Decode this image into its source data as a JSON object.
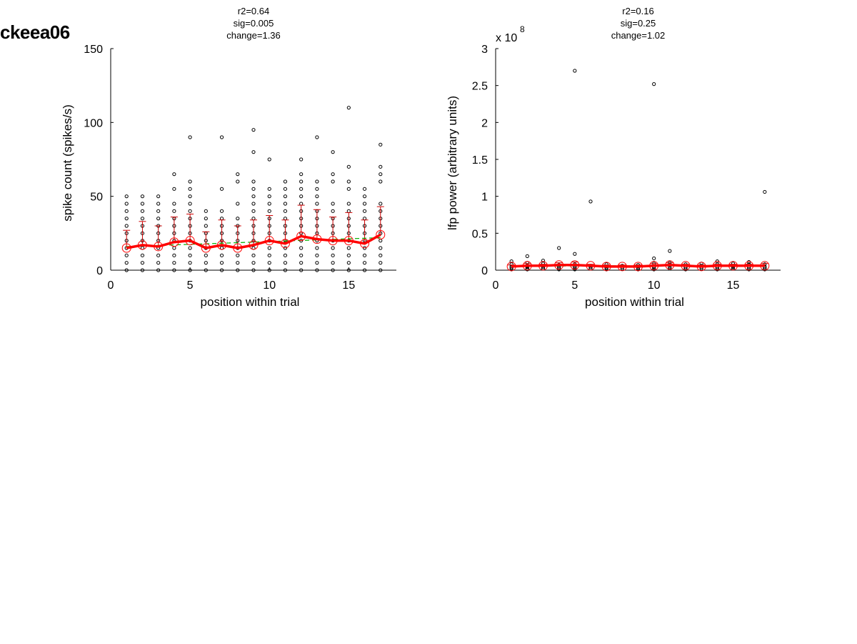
{
  "figure": {
    "unit_label": "ckeea06"
  },
  "chart_data": [
    {
      "type": "scatter",
      "title": [
        "r2=0.64",
        "sig=0.005",
        "change=1.36"
      ],
      "xlabel": "position within trial",
      "ylabel": "spike count (spikes/s)",
      "exponent_label": "",
      "xlim": [
        0,
        18
      ],
      "ylim": [
        0,
        150
      ],
      "xticks": [
        0,
        5,
        10,
        15
      ],
      "xtick_labels": [
        "0",
        "5",
        "10",
        "15"
      ],
      "yticks": [
        0,
        50,
        100,
        150
      ],
      "ytick_labels": [
        "0",
        "50",
        "100",
        "150"
      ],
      "grid": false,
      "legend": "none",
      "colors": {
        "raw": "#000000",
        "mean": "#ff0000",
        "error": "#cc0000",
        "fit": "#00b000"
      },
      "raw_points": [
        [
          0,
          5,
          10,
          15,
          20,
          25,
          30,
          35,
          40,
          45,
          50
        ],
        [
          0,
          5,
          10,
          15,
          20,
          25,
          30,
          35,
          40,
          45,
          50
        ],
        [
          0,
          5,
          10,
          15,
          20,
          25,
          30,
          35,
          40,
          45,
          50
        ],
        [
          0,
          5,
          10,
          15,
          20,
          25,
          30,
          35,
          40,
          45,
          55,
          65
        ],
        [
          0,
          5,
          10,
          15,
          20,
          25,
          30,
          35,
          40,
          45,
          50,
          55,
          60,
          90
        ],
        [
          0,
          5,
          10,
          15,
          20,
          25,
          30,
          35,
          40
        ],
        [
          0,
          5,
          10,
          15,
          20,
          25,
          30,
          35,
          40,
          55,
          90
        ],
        [
          0,
          5,
          10,
          15,
          20,
          25,
          30,
          35,
          45,
          60,
          65
        ],
        [
          0,
          5,
          10,
          15,
          20,
          25,
          30,
          35,
          40,
          45,
          50,
          55,
          60,
          80,
          95
        ],
        [
          0,
          5,
          10,
          15,
          20,
          25,
          30,
          35,
          40,
          45,
          50,
          55,
          75
        ],
        [
          0,
          5,
          10,
          15,
          20,
          25,
          30,
          35,
          40,
          45,
          50,
          55,
          60
        ],
        [
          0,
          5,
          10,
          15,
          20,
          25,
          30,
          35,
          40,
          45,
          50,
          55,
          60,
          65,
          75
        ],
        [
          0,
          5,
          10,
          15,
          20,
          25,
          30,
          35,
          40,
          45,
          50,
          55,
          60,
          90
        ],
        [
          0,
          5,
          10,
          15,
          20,
          25,
          30,
          35,
          40,
          45,
          60,
          65,
          80
        ],
        [
          0,
          5,
          10,
          15,
          20,
          25,
          30,
          35,
          40,
          45,
          55,
          60,
          70,
          110
        ],
        [
          0,
          5,
          10,
          15,
          20,
          25,
          30,
          35,
          40,
          45,
          50,
          55
        ],
        [
          0,
          5,
          10,
          15,
          20,
          25,
          30,
          35,
          40,
          45,
          60,
          65,
          70,
          85
        ]
      ],
      "series": [
        {
          "x": [
            1,
            2,
            3,
            4,
            5,
            6,
            7,
            8,
            9,
            10,
            11,
            12,
            13,
            14,
            15,
            16,
            17
          ],
          "values": [
            15,
            17,
            16,
            19,
            20,
            15,
            17,
            15,
            17,
            20,
            18,
            23,
            21,
            20,
            20,
            18,
            24
          ],
          "sd": [
            12,
            16,
            14,
            17,
            18,
            11,
            17,
            15,
            17,
            17,
            16,
            21,
            20,
            16,
            19,
            16,
            19
          ]
        }
      ],
      "fit_line": {
        "x": [
          1,
          17
        ],
        "y": [
          16,
          22
        ]
      }
    },
    {
      "type": "scatter",
      "title": [
        "r2=0.16",
        "sig=0.25",
        "change=1.02"
      ],
      "xlabel": "position within trial",
      "ylabel": "lfp power (arbitrary units)",
      "exponent_label": "x 10",
      "exponent_power": "8",
      "xlim": [
        0,
        18
      ],
      "ylim": [
        0,
        3
      ],
      "xticks": [
        0,
        5,
        10,
        15
      ],
      "xtick_labels": [
        "0",
        "5",
        "10",
        "15"
      ],
      "yticks": [
        0,
        0.5,
        1,
        1.5,
        2,
        2.5,
        3
      ],
      "ytick_labels": [
        "0",
        "0.5",
        "1",
        "1.5",
        "2",
        "2.5",
        "3"
      ],
      "grid": false,
      "legend": "none",
      "colors": {
        "raw": "#000000",
        "mean": "#ff0000",
        "error": "#cc0000",
        "fit": "#00b000"
      },
      "raw_points": [
        [
          0.01,
          0.03,
          0.05,
          0.08,
          0.12
        ],
        [
          0.01,
          0.02,
          0.04,
          0.06,
          0.1,
          0.19
        ],
        [
          0.02,
          0.04,
          0.06,
          0.09,
          0.13
        ],
        [
          0.01,
          0.03,
          0.05,
          0.07,
          0.3
        ],
        [
          0.01,
          0.03,
          0.05,
          0.08,
          0.22,
          2.7
        ],
        [
          0.02,
          0.04,
          0.06,
          0.93
        ],
        [
          0.01,
          0.03,
          0.05,
          0.08
        ],
        [
          0.02,
          0.04,
          0.06
        ],
        [
          0.01,
          0.03,
          0.05,
          0.07
        ],
        [
          0.01,
          0.03,
          0.05,
          0.09,
          0.16,
          2.52
        ],
        [
          0.02,
          0.04,
          0.07,
          0.1,
          0.26
        ],
        [
          0.01,
          0.03,
          0.05,
          0.08
        ],
        [
          0.02,
          0.04,
          0.06,
          0.09
        ],
        [
          0.01,
          0.03,
          0.05,
          0.08,
          0.12
        ],
        [
          0.02,
          0.04,
          0.06,
          0.09
        ],
        [
          0.01,
          0.03,
          0.05,
          0.08,
          0.11
        ],
        [
          0.01,
          0.03,
          0.05,
          0.08,
          1.06
        ]
      ],
      "series": [
        {
          "x": [
            1,
            2,
            3,
            4,
            5,
            6,
            7,
            8,
            9,
            10,
            11,
            12,
            13,
            14,
            15,
            16,
            17
          ],
          "values": [
            0.05,
            0.06,
            0.06,
            0.07,
            0.07,
            0.06,
            0.05,
            0.05,
            0.05,
            0.06,
            0.07,
            0.06,
            0.05,
            0.06,
            0.06,
            0.06,
            0.06
          ],
          "sd": [
            0.02,
            0.03,
            0.02,
            0.03,
            0.04,
            0.02,
            0.02,
            0.02,
            0.02,
            0.03,
            0.03,
            0.02,
            0.02,
            0.02,
            0.02,
            0.02,
            0.03
          ]
        }
      ],
      "fit_line": {
        "x": [
          1,
          17
        ],
        "y": [
          0.055,
          0.065
        ]
      }
    }
  ]
}
